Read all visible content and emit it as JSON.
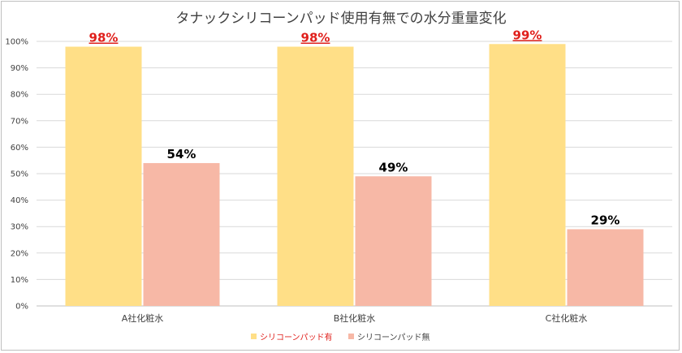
{
  "chart_data": {
    "type": "bar",
    "title": "タナックシリコーンパッド使用有無での水分重量変化",
    "categories": [
      "A社化粧水",
      "B社化粧水",
      "C社化粧水"
    ],
    "series": [
      {
        "name": "シリコーンパッド有",
        "values": [
          98,
          98,
          99
        ],
        "labels": [
          "98%",
          "98%",
          "99%"
        ],
        "color": "#ffdf87",
        "label_color": "#e0201c",
        "legend_text_color": "#e0201c",
        "label_underline": true
      },
      {
        "name": "シリコーンパッド無",
        "values": [
          54,
          49,
          29
        ],
        "labels": [
          "54%",
          "49%",
          "29%"
        ],
        "color": "#f7b8a6",
        "label_color": "#000000",
        "legend_text_color": "#404040",
        "label_underline": false
      }
    ],
    "ylim": [
      0,
      100
    ],
    "yticks": [
      "0%",
      "10%",
      "20%",
      "30%",
      "40%",
      "50%",
      "60%",
      "70%",
      "80%",
      "90%",
      "100%"
    ],
    "xlabel": "",
    "ylabel": "",
    "grid": true,
    "legend_position": "bottom"
  }
}
